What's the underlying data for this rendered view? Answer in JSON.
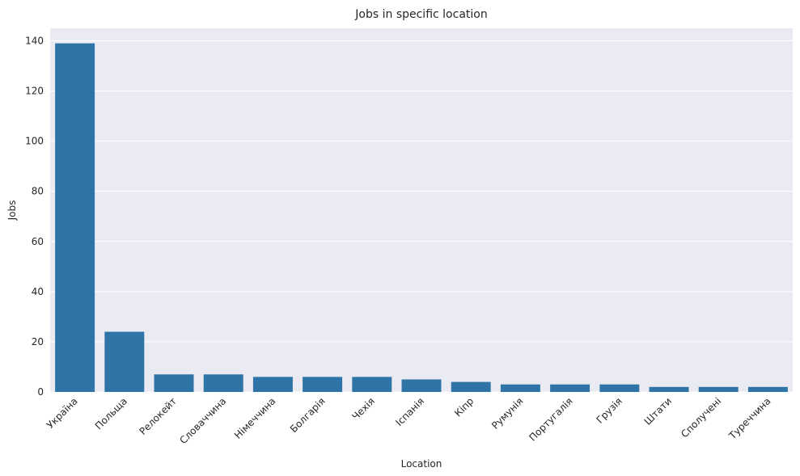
{
  "chart_data": {
    "type": "bar",
    "title": "Jobs in specific location",
    "xlabel": "Location",
    "ylabel": "Jobs",
    "categories": [
      "Україна",
      "Польща",
      "Релокейт",
      "Словаччина",
      "Німеччина",
      "Болгарія",
      "Чехія",
      "Іспанія",
      "Кіпр",
      "Румунія",
      "Португалія",
      "Грузія",
      "Штати",
      "Сполучені",
      "Туреччина"
    ],
    "values": [
      139,
      24,
      7,
      7,
      6,
      6,
      6,
      5,
      4,
      3,
      3,
      3,
      2,
      2,
      2
    ],
    "ylim": [
      0,
      145
    ],
    "yticks": [
      0,
      20,
      40,
      60,
      80,
      100,
      120,
      140
    ],
    "grid": true,
    "bar_color": "#2e74a6",
    "background_color": "#eaeaf2"
  }
}
